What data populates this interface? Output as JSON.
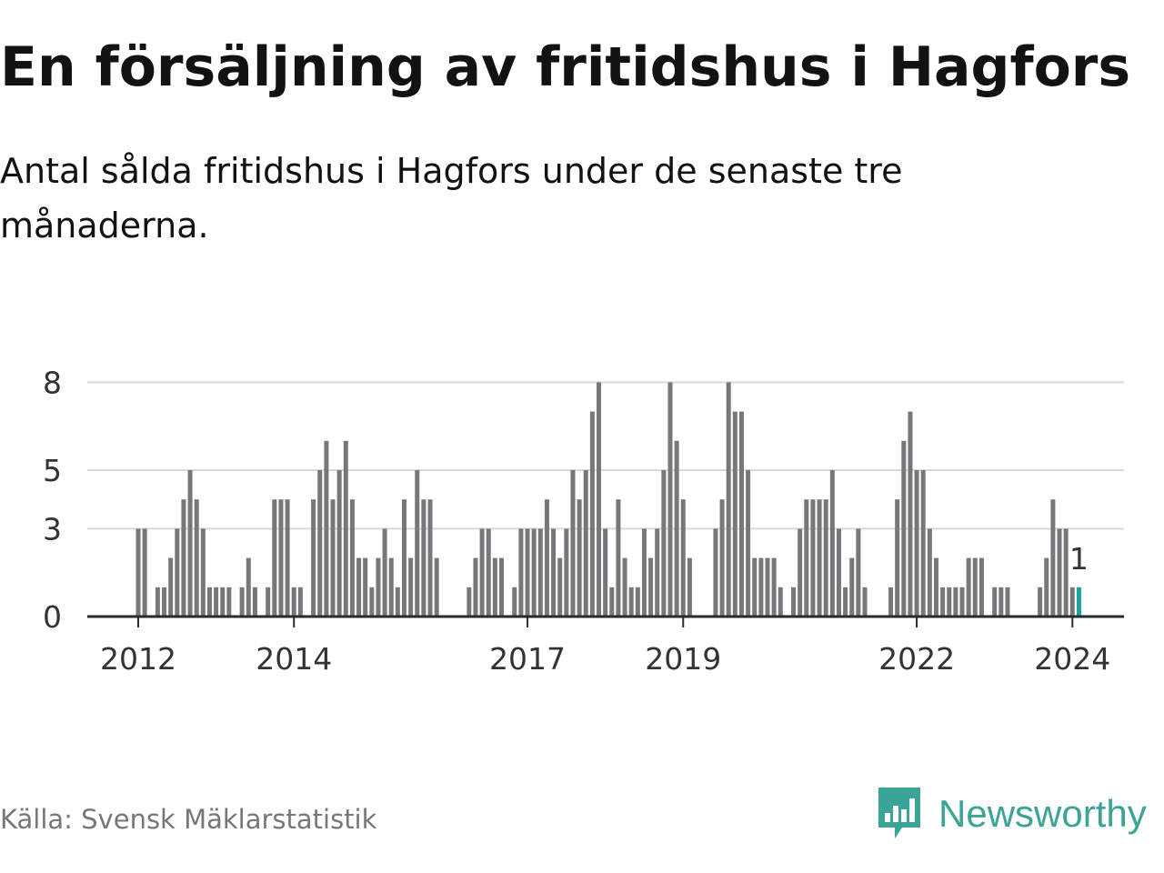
{
  "title": "En försäljning av fritidshus i Hagfors",
  "subtitle": "Antal sålda fritidshus i Hagfors under de senaste tre månaderna.",
  "source": "Källa: Svensk Mäklarstatistik",
  "brand": {
    "name": "Newsworthy",
    "icon": "newsworthy-logo-icon"
  },
  "colors": {
    "bar": "#77767b",
    "highlight": "#1aa39b",
    "grid": "#d9d9d9",
    "axis": "#2b2b2b",
    "text": "#333333",
    "brand": "#3aa597"
  },
  "chart_data": {
    "type": "bar",
    "x_axis": {
      "start": "2012-01",
      "end": "2024-01",
      "ticks": [
        "2012",
        "2014",
        "2017",
        "2019",
        "2022",
        "2024"
      ]
    },
    "y_axis": {
      "ticks": [
        0,
        3,
        5,
        8
      ],
      "range": [
        0,
        9
      ]
    },
    "grid": true,
    "series": [
      {
        "values": [
          3,
          3,
          0,
          1,
          1,
          2,
          3,
          4,
          5,
          4,
          3,
          1,
          1,
          1,
          1,
          0,
          1,
          2,
          1,
          0,
          1,
          4,
          4,
          4,
          1,
          1,
          0,
          4,
          5,
          6,
          4,
          5,
          6,
          4,
          2,
          2,
          1,
          2,
          3,
          2,
          1,
          4,
          2,
          5,
          4,
          4,
          2,
          0,
          0,
          0,
          0,
          1,
          2,
          3,
          3,
          2,
          2,
          0,
          1,
          3,
          3,
          3,
          3,
          4,
          3,
          2,
          3,
          5,
          4,
          5,
          7,
          8,
          3,
          1,
          4,
          2,
          1,
          1,
          3,
          2,
          3,
          5,
          8,
          6,
          4,
          2,
          0,
          0,
          0,
          3,
          4,
          8,
          7,
          7,
          5,
          2,
          2,
          2,
          2,
          1,
          0,
          1,
          3,
          4,
          4,
          4,
          4,
          5,
          3,
          1,
          2,
          3,
          1,
          0,
          0,
          0,
          1,
          4,
          6,
          7,
          5,
          5,
          3,
          2,
          1,
          1,
          1,
          1,
          2,
          2,
          2,
          0,
          1,
          1,
          1,
          0,
          0,
          0,
          0,
          1,
          2,
          4,
          3,
          3,
          1,
          1
        ]
      }
    ],
    "annotation": {
      "label": "1"
    }
  }
}
